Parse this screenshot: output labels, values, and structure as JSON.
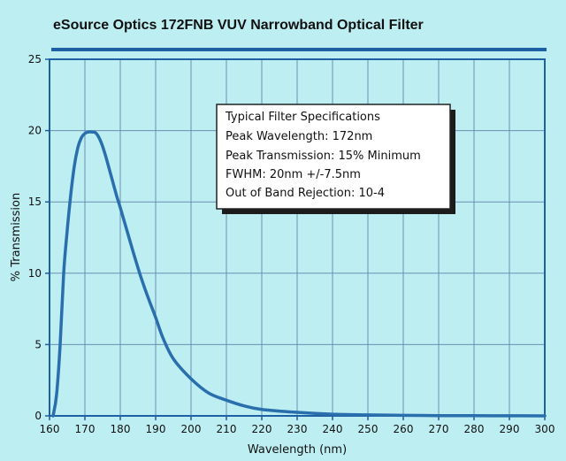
{
  "chart_data": {
    "type": "line",
    "title": "eSource Optics 172FNB VUV Narrowband Optical Filter",
    "xlabel": "Wavelength (nm)",
    "ylabel": "% Transmission",
    "xlim": [
      160,
      300
    ],
    "ylim": [
      0,
      25
    ],
    "x_ticks": [
      160,
      170,
      180,
      190,
      200,
      210,
      220,
      230,
      240,
      250,
      260,
      270,
      280,
      290,
      300
    ],
    "y_ticks": [
      0,
      5,
      10,
      15,
      20,
      25
    ],
    "grid": true,
    "colors": {
      "line": "#2a6fad",
      "grid": "#6c8fb0",
      "frame": "#1f5fa3",
      "background": "#bdeef2"
    },
    "series": [
      {
        "x": [
          161,
          162,
          163,
          164,
          165,
          166,
          167,
          168,
          169,
          170,
          171,
          172,
          173,
          174,
          175,
          176,
          177,
          178,
          179,
          180,
          182,
          184,
          186,
          188,
          190,
          192,
          195,
          200,
          205,
          210,
          215,
          220,
          230,
          240,
          250,
          260,
          270,
          280,
          290,
          300
        ],
        "y": [
          0.0,
          1.5,
          5.0,
          10.0,
          13.0,
          15.5,
          17.5,
          18.8,
          19.5,
          19.8,
          19.9,
          19.9,
          19.85,
          19.5,
          18.9,
          18.1,
          17.2,
          16.3,
          15.4,
          14.6,
          12.9,
          11.2,
          9.6,
          8.2,
          6.9,
          5.5,
          4.0,
          2.6,
          1.6,
          1.1,
          0.7,
          0.45,
          0.25,
          0.12,
          0.07,
          0.04,
          0.02,
          0.01,
          0.005,
          0.0
        ]
      }
    ],
    "annotation": {
      "heading": "Typical Filter Specifications",
      "lines": [
        "Peak Wavelength: 172nm",
        "Peak Transmission: 15% Minimum",
        "FWHM: 20nm +/-7.5nm",
        "Out of Band Rejection: 10-4"
      ]
    }
  }
}
